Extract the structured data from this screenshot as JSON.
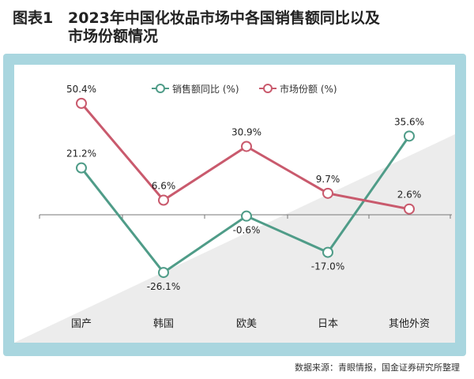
{
  "title": {
    "prefix": "图表1",
    "line1": "2023年中国化妆品市场中各国销售额同比以及",
    "line2": "市场份额情况"
  },
  "source": "数据来源：青眼情报，国金证券研究所整理",
  "colors": {
    "growth": "#4f9c88",
    "share": "#c95a6d",
    "frame": "#a9d6df"
  },
  "chart_data": {
    "type": "line",
    "categories": [
      "国产",
      "韩国",
      "欧美",
      "日本",
      "其他外资"
    ],
    "series": [
      {
        "name": "销售额同比 (%)",
        "values": [
          21.2,
          -26.1,
          -0.6,
          -17.0,
          35.6
        ],
        "labels": [
          "21.2%",
          "-26.1%",
          "-0.6%",
          "-17.0%",
          "35.6%"
        ]
      },
      {
        "name": "市场份额 (%)",
        "values": [
          50.4,
          6.6,
          30.9,
          9.7,
          2.6
        ],
        "labels": [
          "50.4%",
          "6.6%",
          "30.9%",
          "9.7%",
          "2.6%"
        ]
      }
    ],
    "legend": "top-center",
    "grid": false
  }
}
